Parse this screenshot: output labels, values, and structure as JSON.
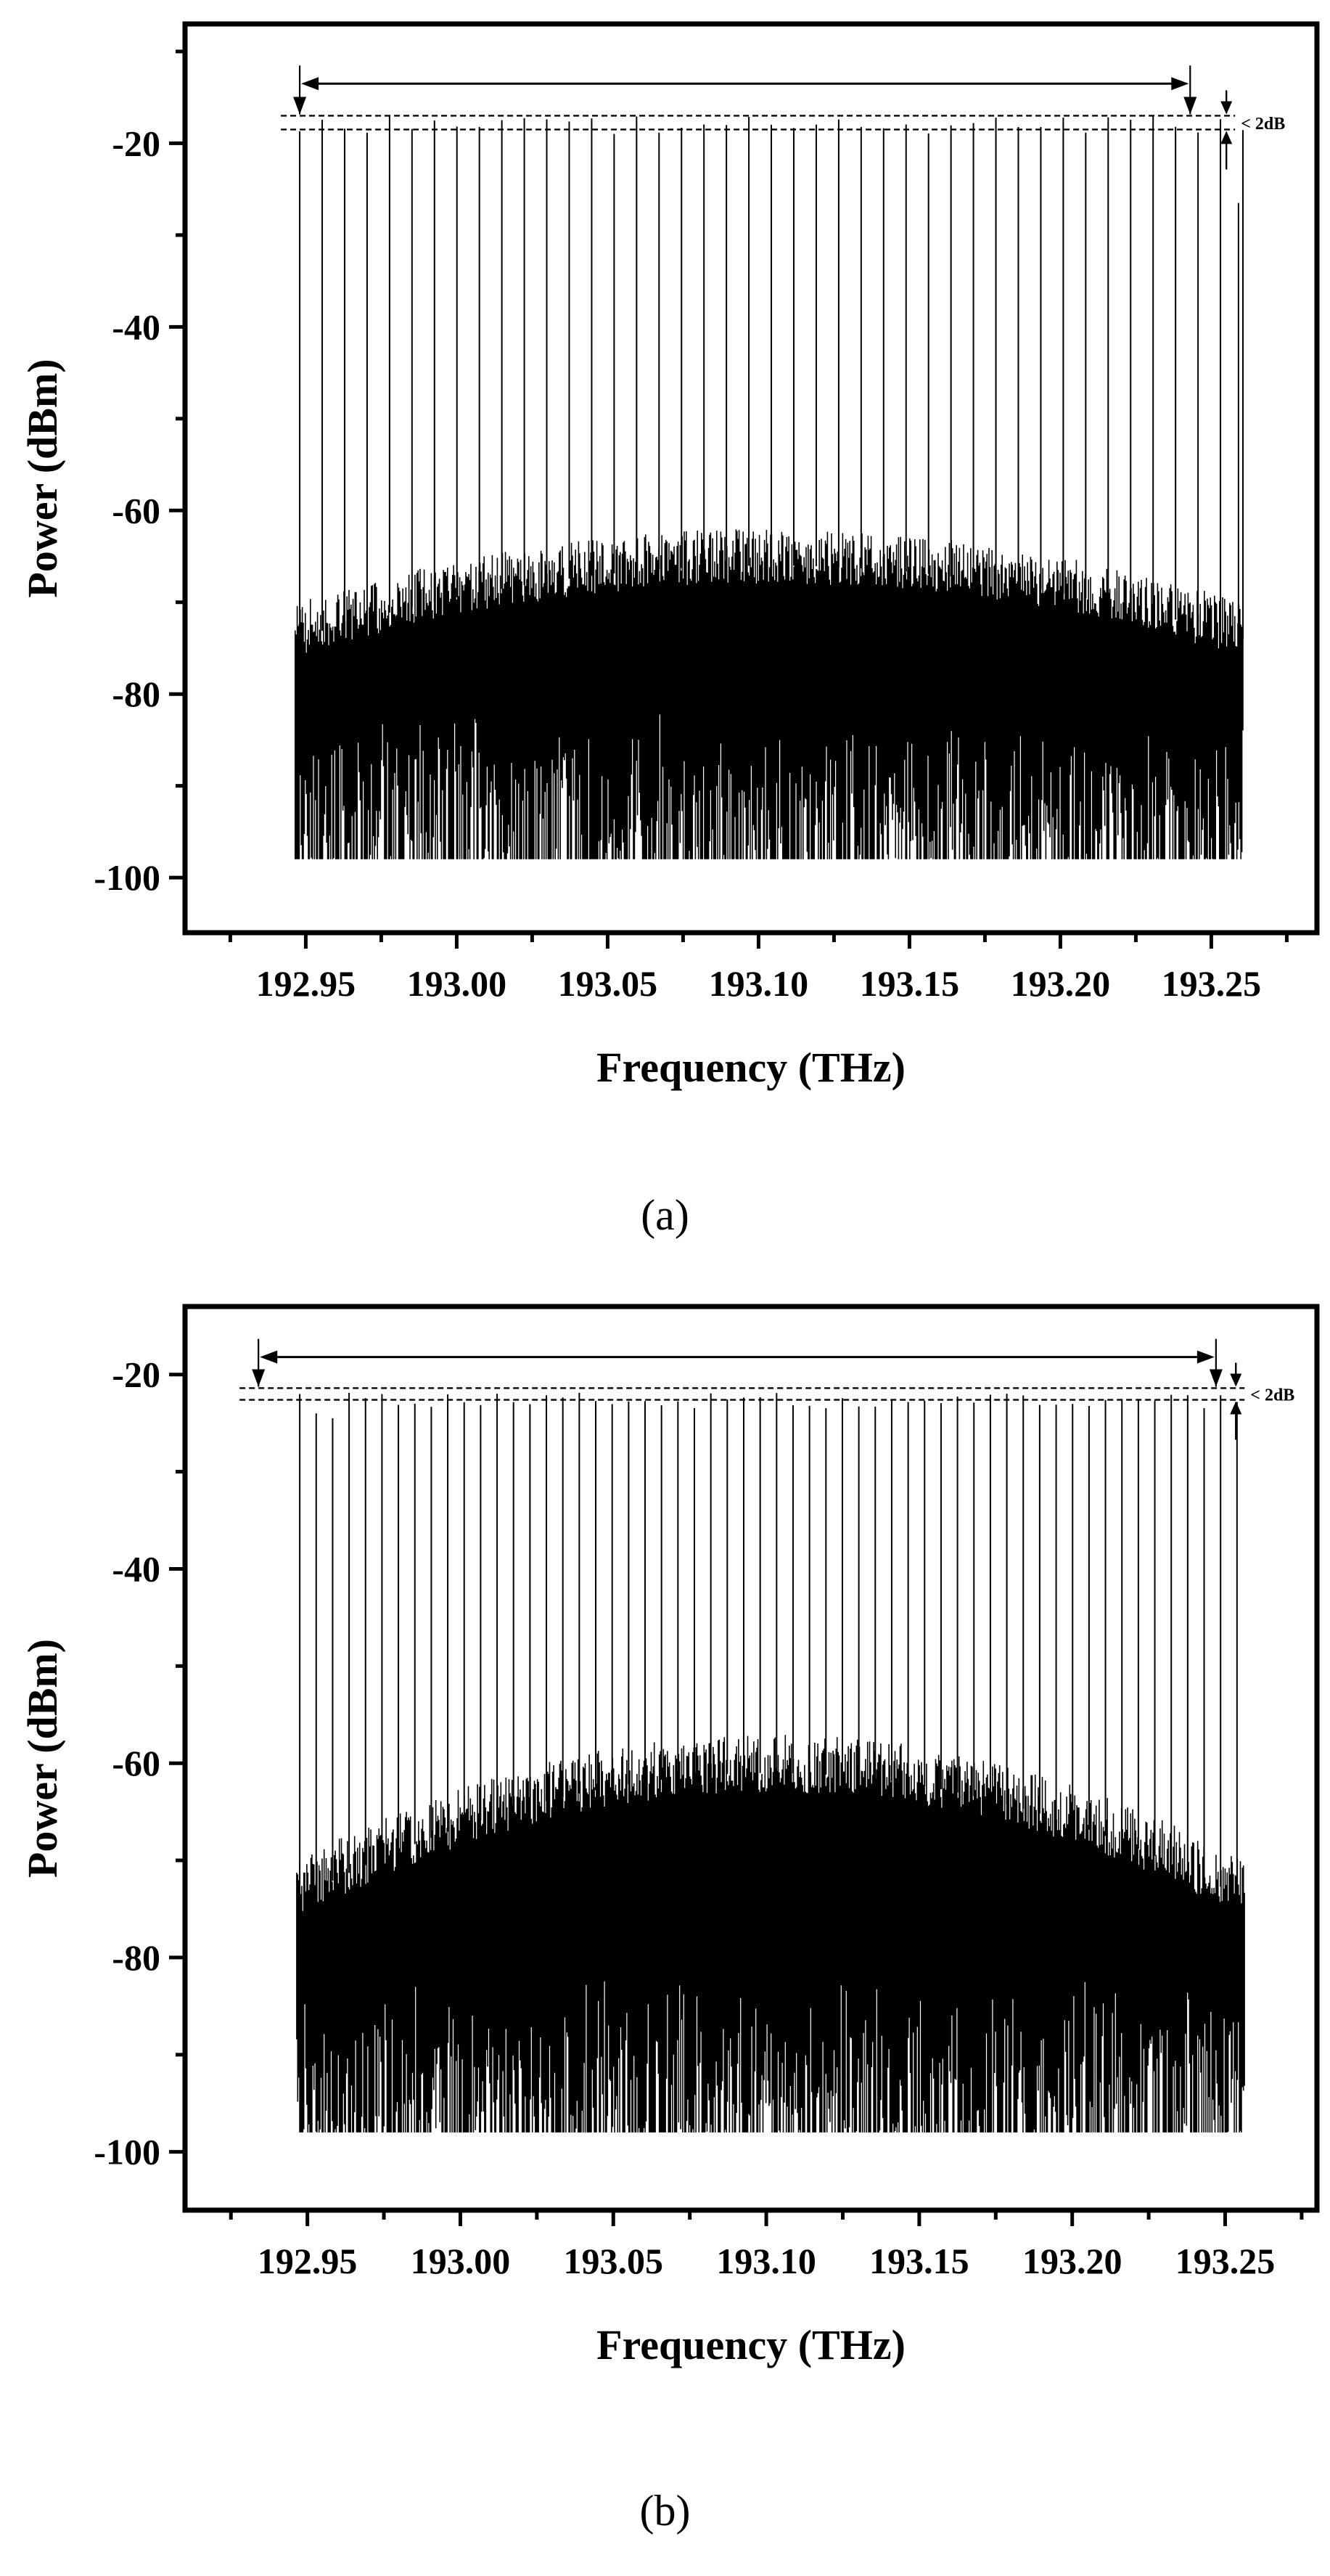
{
  "chart_data": [
    {
      "type": "line",
      "panel": "(a)",
      "xlabel": "Frequency (THz)",
      "ylabel": "Power (dBm)",
      "xlim": [
        192.91,
        193.285
      ],
      "ylim": [
        -106,
        -7
      ],
      "xticks": [
        192.95,
        193.0,
        193.05,
        193.1,
        193.15,
        193.2,
        193.25
      ],
      "xtick_labels": [
        "192.95",
        "193.00",
        "193.05",
        "193.10",
        "193.15",
        "193.20",
        "193.25"
      ],
      "yticks": [
        -100,
        -80,
        -60,
        -40,
        -20
      ],
      "ytick_labels": [
        "-100",
        "-80",
        "-60",
        "-40",
        "-20"
      ],
      "grid": false,
      "legend": "none",
      "noise_range": [
        192.9465,
        193.2605
      ],
      "comb": {
        "start_thz": 192.948,
        "spacing_thz": 0.00744,
        "count": 43,
        "flat_peak_range_dbm": [
          -17,
          -19
        ],
        "last_line": {
          "x": 193.259,
          "y": -26.5
        }
      },
      "noise_envelope_dbm": {
        "floor_edge": -70,
        "floor_center": -62,
        "bottom": -98
      },
      "annotation": {
        "text": "< 2dB",
        "arrow_x_range": [
          192.948,
          193.243
        ],
        "arrow_y": -13.5,
        "dashed_lines_y": [
          -17,
          -18.5
        ],
        "marker_x": 193.255
      },
      "line_color": "#000000"
    },
    {
      "type": "line",
      "panel": "(b)",
      "xlabel": "Frequency (THz)",
      "ylabel": "Power (dBm)",
      "xlim": [
        192.91,
        193.28
      ],
      "ylim": [
        -106,
        -13
      ],
      "xticks": [
        192.95,
        193.0,
        193.05,
        193.1,
        193.15,
        193.2,
        193.25
      ],
      "xtick_labels": [
        "192.95",
        "193.00",
        "193.05",
        "193.10",
        "193.15",
        "193.20",
        "193.25"
      ],
      "yticks": [
        -100,
        -80,
        -60,
        -40,
        -20
      ],
      "ytick_labels": [
        "-100",
        "-80",
        "-60",
        "-40",
        "-20"
      ],
      "grid": false,
      "legend": "none",
      "noise_range": [
        192.9465,
        193.2565
      ],
      "comb": {
        "start_thz": 192.9475,
        "spacing_thz": 0.005375,
        "count": 58,
        "flat_peak_range_dbm": [
          -21.8,
          -23.5
        ],
        "edge_peaks_dbm": [
          -22,
          -24,
          -24.5
        ]
      },
      "noise_envelope_dbm": {
        "floor_edge": -70,
        "floor_center": -57,
        "bottom": -98
      },
      "annotation": {
        "text": "< 2dB",
        "arrow_x_range": [
          192.934,
          193.247
        ],
        "arrow_y": -18.2,
        "dashed_lines_y": [
          -21.4,
          -22.6
        ],
        "marker_x": 193.2535
      },
      "line_color": "#000000"
    }
  ],
  "captions": [
    "(a)",
    "(b)"
  ]
}
